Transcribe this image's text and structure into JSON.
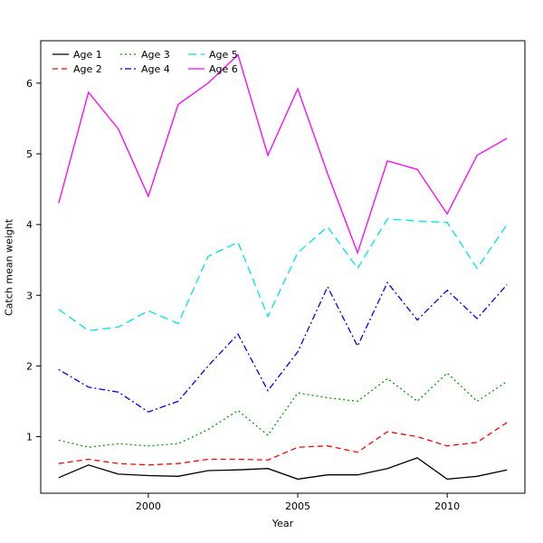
{
  "chart_data": {
    "type": "line",
    "title": "",
    "xlabel": "Year",
    "ylabel": "Catch mean weight",
    "x": [
      1997,
      1998,
      1999,
      2000,
      2001,
      2002,
      2003,
      2004,
      2005,
      2006,
      2007,
      2008,
      2009,
      2010,
      2011,
      2012
    ],
    "xlim": [
      1996.4,
      2012.6
    ],
    "ylim": [
      0.2,
      6.6
    ],
    "xticks": [
      2000,
      2005,
      2010
    ],
    "yticks": [
      1,
      2,
      3,
      4,
      5,
      6
    ],
    "grid": false,
    "legend_position": "top-left",
    "series": [
      {
        "name": "Age 1",
        "color": "#000000",
        "dash": "",
        "values": [
          0.42,
          0.6,
          0.47,
          0.45,
          0.44,
          0.52,
          0.53,
          0.55,
          0.4,
          0.46,
          0.46,
          0.55,
          0.7,
          0.4,
          0.44,
          0.53
        ]
      },
      {
        "name": "Age 2",
        "color": "#ff0000",
        "dash": "6 4",
        "values": [
          0.62,
          0.68,
          0.62,
          0.6,
          0.62,
          0.68,
          0.68,
          0.67,
          0.85,
          0.87,
          0.78,
          1.07,
          1.0,
          0.87,
          0.92,
          1.2
        ]
      },
      {
        "name": "Age 3",
        "color": "#00a000",
        "dash": "2 3",
        "values": [
          0.95,
          0.85,
          0.9,
          0.87,
          0.9,
          1.1,
          1.37,
          1.02,
          1.62,
          1.55,
          1.5,
          1.82,
          1.5,
          1.9,
          1.5,
          1.78
        ]
      },
      {
        "name": "Age 4",
        "color": "#0000ff",
        "dash": "2 3 7 3",
        "values": [
          1.95,
          1.7,
          1.63,
          1.35,
          1.5,
          2.0,
          2.45,
          1.65,
          2.2,
          3.12,
          2.28,
          3.18,
          2.65,
          3.07,
          2.67,
          3.15
        ]
      },
      {
        "name": "Age 5",
        "color": "#00e5e5",
        "dash": "9 5",
        "values": [
          2.8,
          2.5,
          2.55,
          2.78,
          2.6,
          3.55,
          3.75,
          2.7,
          3.6,
          3.97,
          3.38,
          4.08,
          4.05,
          4.03,
          3.38,
          4.0
        ]
      },
      {
        "name": "Age 6",
        "color": "#ff00ff",
        "dash": "",
        "values": [
          4.3,
          5.87,
          5.35,
          4.4,
          5.7,
          6.0,
          6.4,
          4.98,
          5.92,
          4.72,
          3.6,
          4.9,
          4.78,
          4.15,
          4.98,
          5.22
        ]
      }
    ]
  }
}
